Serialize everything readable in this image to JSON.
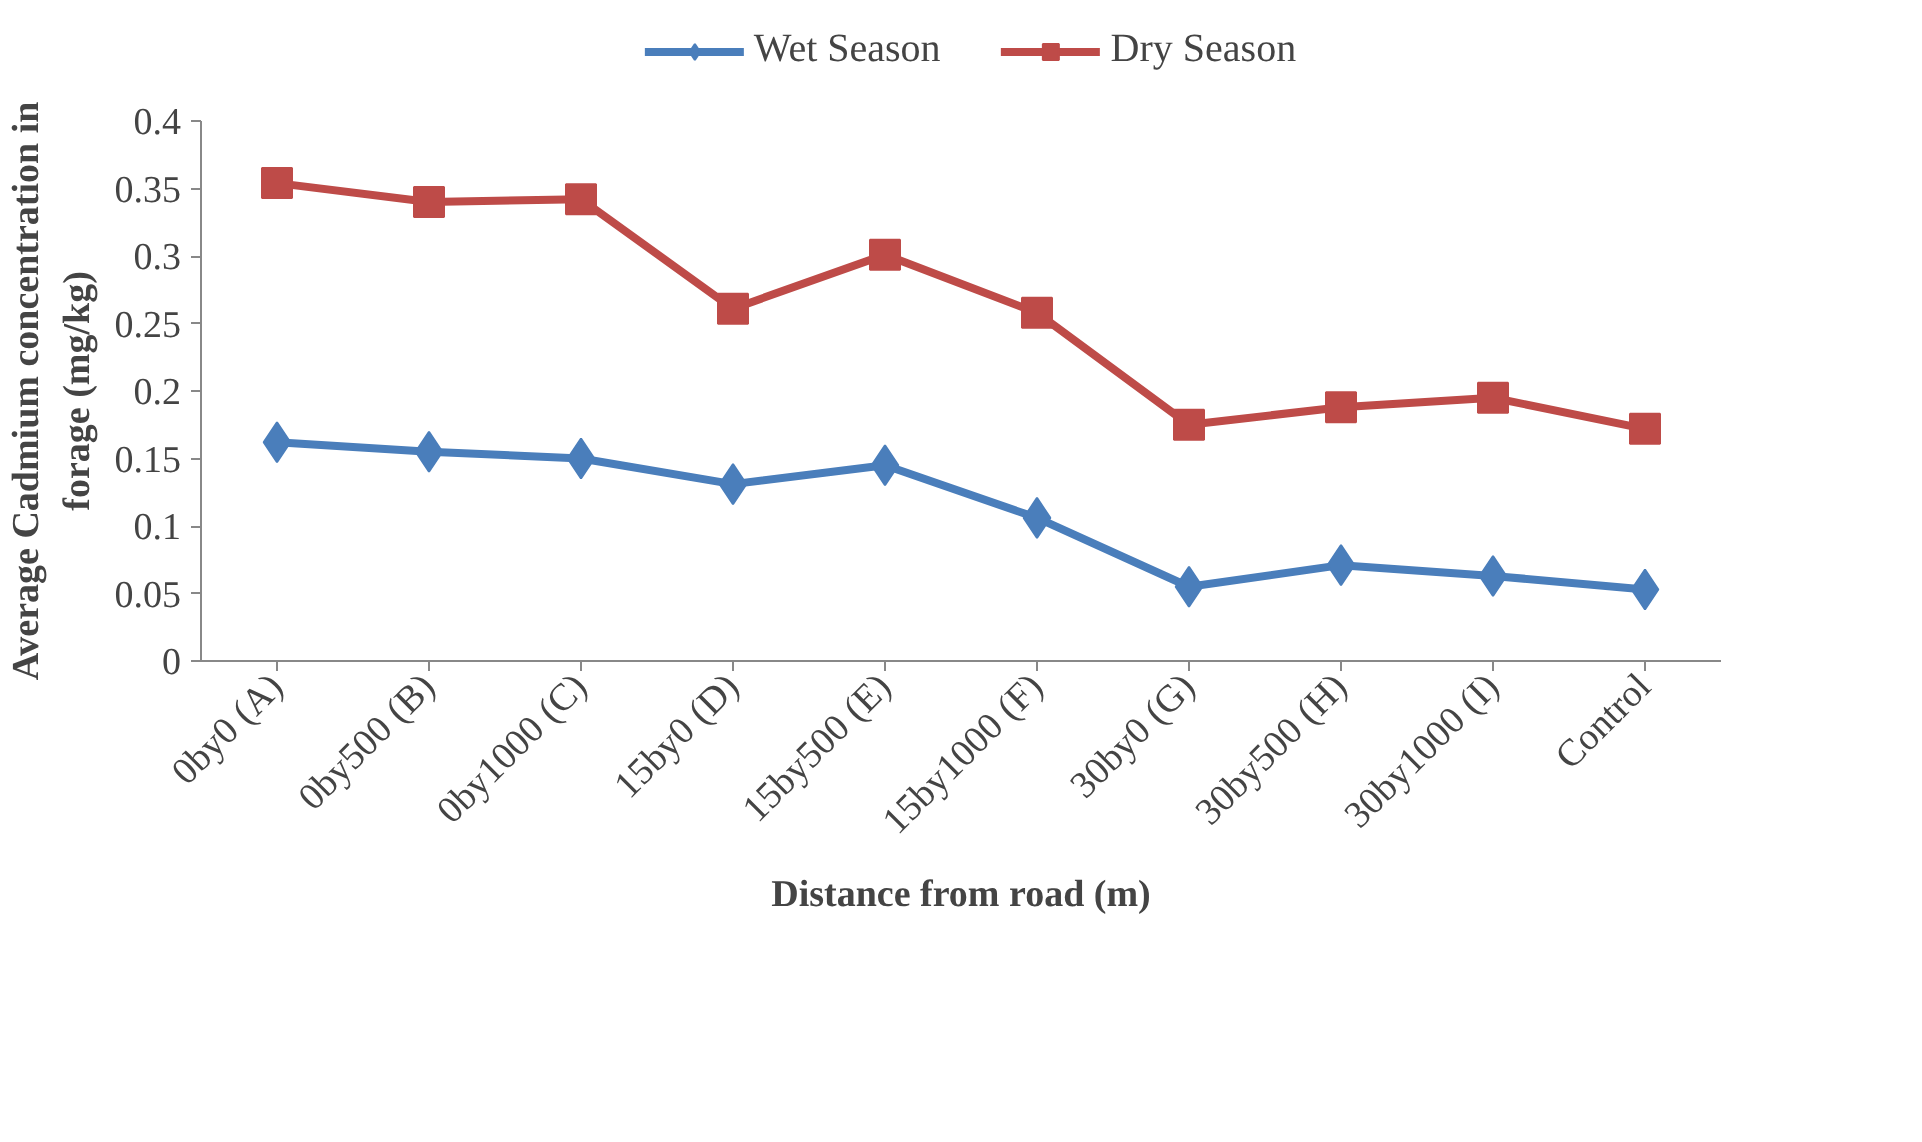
{
  "chart_data": {
    "type": "line",
    "xlabel": "Distance from road (m)",
    "ylabel": "Average Cadmium concentration in forage (mg/kg)",
    "categories": [
      "0by0 (A)",
      "0by500 (B)",
      "0by1000 (C)",
      "15by0 (D)",
      "15by500 (E)",
      "15by1000 (F)",
      "30by0 (G)",
      "30by500 (H)",
      "30by1000 (I)",
      "Control"
    ],
    "series": [
      {
        "name": "Wet Season",
        "color": "#4a7ebb",
        "marker": "diamond",
        "values": [
          0.162,
          0.155,
          0.15,
          0.131,
          0.145,
          0.106,
          0.055,
          0.071,
          0.063,
          0.053
        ]
      },
      {
        "name": "Dry Season",
        "color": "#be4b48",
        "marker": "square",
        "values": [
          0.354,
          0.34,
          0.342,
          0.261,
          0.301,
          0.258,
          0.175,
          0.188,
          0.195,
          0.172
        ]
      }
    ],
    "ylim": [
      0,
      0.4
    ],
    "yticks": [
      0,
      0.05,
      0.1,
      0.15,
      0.2,
      0.25,
      0.3,
      0.35,
      0.4
    ],
    "grid": false,
    "legend": "top",
    "line_style": "solid"
  }
}
